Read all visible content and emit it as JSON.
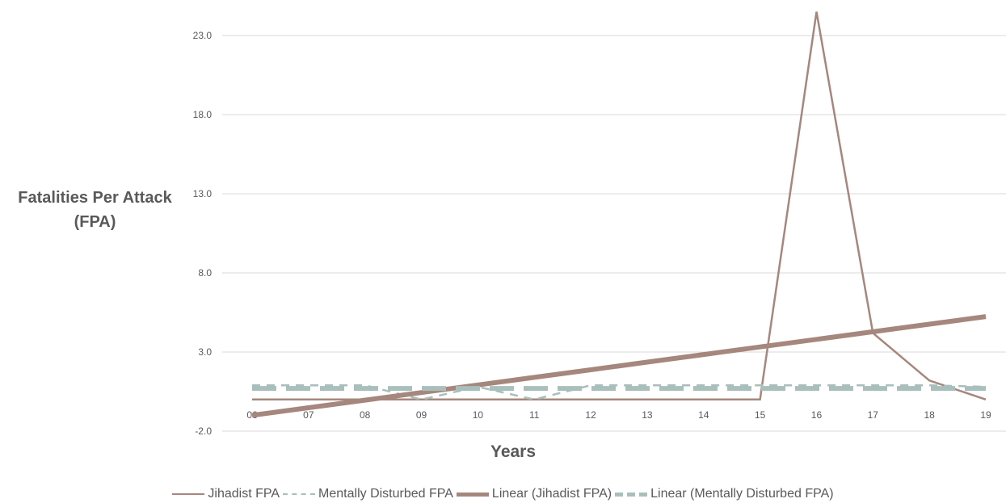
{
  "chart_data": {
    "type": "line",
    "title": "",
    "xlabel": "Years",
    "ylabel": "Fatalities Per Attack (FPA)",
    "ylabel_lines": [
      "Fatalities Per Attack",
      "(FPA)"
    ],
    "categories": [
      "06",
      "07",
      "08",
      "09",
      "10",
      "11",
      "12",
      "13",
      "14",
      "15",
      "16",
      "17",
      "18",
      "19"
    ],
    "ylim": [
      -2.0,
      24.0
    ],
    "yticks": [
      -2.0,
      3.0,
      8.0,
      13.0,
      18.0,
      23.0
    ],
    "ytick_labels": [
      "-2.0",
      "3.0",
      "8.0",
      "13.0",
      "18.0",
      "23.0"
    ],
    "grid": true,
    "legend_position": "bottom",
    "series": [
      {
        "name": "Jihadist FPA",
        "style": "solid-thin",
        "color": "#A5877D",
        "values": [
          0,
          0,
          0,
          0,
          0,
          0,
          0,
          0,
          0,
          0,
          24.5,
          4.2,
          1.2,
          0
        ]
      },
      {
        "name": "Mentally Disturbed FPA",
        "style": "dashed-thin",
        "color": "#A9BFBC",
        "values": [
          0.9,
          0.9,
          0.9,
          0,
          0.8,
          0,
          0.9,
          0.9,
          0.9,
          0.9,
          0.9,
          0.9,
          0.9,
          0.8
        ]
      },
      {
        "name": "Linear (Jihadist FPA)",
        "style": "solid-thick",
        "color": "#A5877D",
        "values": [
          -1.0,
          -0.52,
          -0.04,
          0.44,
          0.92,
          1.4,
          1.88,
          2.36,
          2.84,
          3.32,
          3.8,
          4.28,
          4.76,
          5.24
        ]
      },
      {
        "name": "Linear (Mentally Disturbed FPA)",
        "style": "dashed-thick",
        "color": "#A9BFBC",
        "values": [
          0.7,
          0.7,
          0.7,
          0.7,
          0.7,
          0.7,
          0.7,
          0.7,
          0.7,
          0.7,
          0.7,
          0.7,
          0.7,
          0.7
        ]
      }
    ]
  }
}
